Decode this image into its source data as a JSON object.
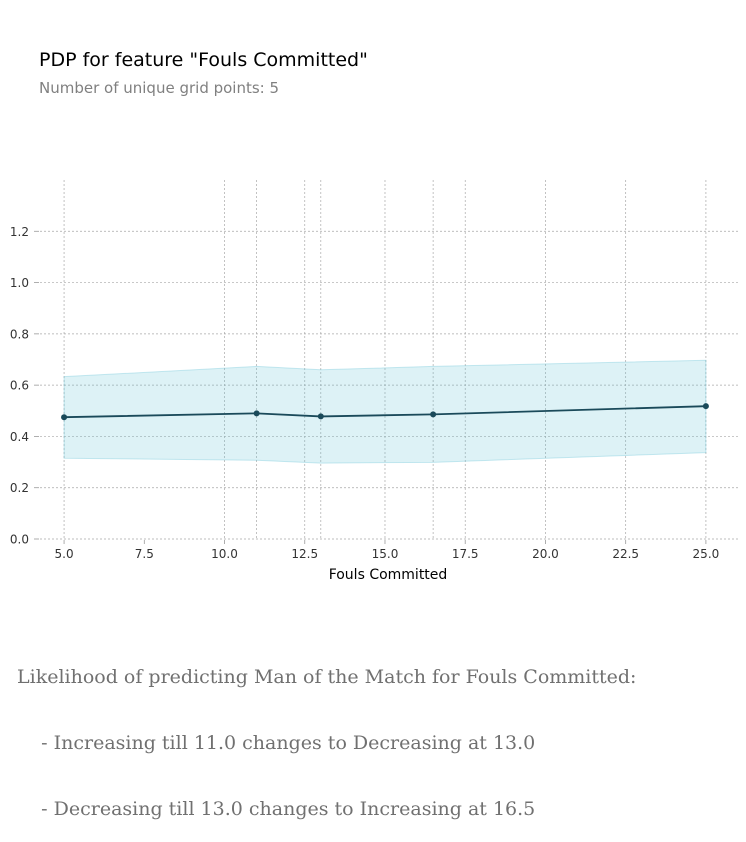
{
  "chart_data": {
    "type": "line",
    "title": "PDP for feature \"Fouls Committed\"",
    "subtitle": "Number of unique grid points: 5",
    "xlabel": "Fouls Committed",
    "ylabel": "",
    "x": [
      5.0,
      11.0,
      13.0,
      16.5,
      25.0
    ],
    "series": [
      {
        "values": [
          0.475,
          0.49,
          0.478,
          0.486,
          0.518
        ],
        "upper": [
          0.633,
          0.673,
          0.66,
          0.673,
          0.697
        ],
        "lower": [
          0.315,
          0.307,
          0.296,
          0.299,
          0.337
        ]
      }
    ],
    "xlim": [
      4.25,
      26.0
    ],
    "ylim": [
      0.0,
      1.4
    ],
    "xticks": [
      5.0,
      7.5,
      10.0,
      12.5,
      15.0,
      17.5,
      20.0,
      22.5,
      25.0
    ],
    "xtick_labels": [
      "5.0",
      "7.5",
      "10.0",
      "12.5",
      "15.0",
      "17.5",
      "20.0",
      "22.5",
      "25.0"
    ],
    "yticks": [
      0.0,
      0.2,
      0.4,
      0.6,
      0.8,
      1.0,
      1.2
    ],
    "ytick_labels": [
      "0.0",
      "0.2",
      "0.4",
      "0.6",
      "0.8",
      "1.0",
      "1.2"
    ],
    "vgrid_x": [
      5.0,
      10.0,
      11.0,
      12.5,
      13.0,
      15.0,
      16.5,
      17.5,
      20.0,
      22.5,
      25.0
    ],
    "grid": true,
    "colors": {
      "line": "#1a4a5a",
      "band": "#66c2d7",
      "grid": "#a8a8a8"
    }
  },
  "caption": {
    "line1": "Likelihood of predicting Man of the Match for Fouls Committed:",
    "line2": "    - Increasing till 11.0 changes to Decreasing at 13.0",
    "line3": "    - Decreasing till 13.0 changes to Increasing at 16.5"
  }
}
